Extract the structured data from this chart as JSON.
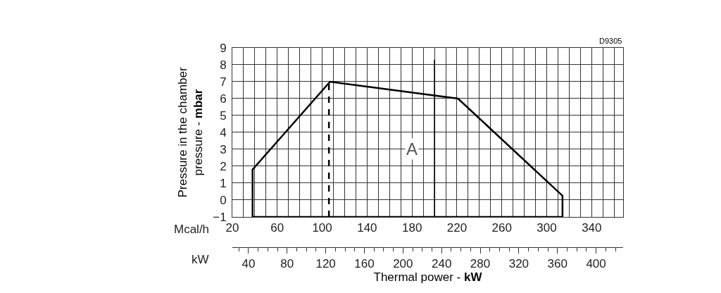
{
  "chart_data": {
    "type": "line",
    "xlabel": "Mcal/h",
    "x2label": "Thermal power - kW",
    "ylabel": "Pressure in the chamber\npressure - mbar",
    "annotations": [
      "D9305",
      "kW",
      {
        "text": "A",
        "x": 180,
        "y": 3
      }
    ],
    "series": [
      {
        "x": [
          38,
          38,
          107,
          221,
          314,
          314
        ],
        "values": [
          -1,
          1.8,
          7,
          6,
          0.25,
          -1
        ],
        "color": "#000000",
        "line_style": "solid"
      },
      {
        "x": [
          38,
          314
        ],
        "values": [
          -1,
          -1
        ],
        "color": "#000000",
        "line_style": "solid"
      },
      {
        "x": [
          106,
          106
        ],
        "values": [
          -1,
          7
        ],
        "color": "#000000",
        "line_style": "dashed"
      }
    ],
    "ref_lines": [
      {
        "axis": "x",
        "value": 200,
        "color": "#000000"
      }
    ],
    "xlim": [
      20,
      368
    ],
    "xticks": [
      20,
      {
        "value": 30,
        "label": null
      },
      {
        "value": 40,
        "label": null
      },
      {
        "value": 50,
        "label": null
      },
      60,
      {
        "value": 70,
        "label": null
      },
      {
        "value": 80,
        "label": null
      },
      {
        "value": 90,
        "label": null
      },
      100,
      {
        "value": 110,
        "label": null
      },
      {
        "value": 120,
        "label": null
      },
      {
        "value": 130,
        "label": null
      },
      140,
      {
        "value": 150,
        "label": null
      },
      {
        "value": 160,
        "label": null
      },
      {
        "value": 170,
        "label": null
      },
      180,
      {
        "value": 190,
        "label": null
      },
      {
        "value": 200,
        "label": null
      },
      {
        "value": 210,
        "label": null
      },
      220,
      {
        "value": 230,
        "label": null
      },
      {
        "value": 240,
        "label": null
      },
      {
        "value": 250,
        "label": null
      },
      260,
      {
        "value": 270,
        "label": null
      },
      {
        "value": 280,
        "label": null
      },
      {
        "value": 290,
        "label": null
      },
      300,
      {
        "value": 310,
        "label": null
      },
      {
        "value": 320,
        "label": null
      },
      {
        "value": 330,
        "label": null
      },
      340,
      {
        "value": 350,
        "label": null
      },
      {
        "value": 360,
        "label": null
      }
    ],
    "x2lim": [
      23.3,
      428
    ],
    "x2ticks": [
      40,
      80,
      120,
      160,
      200,
      240,
      280,
      320,
      360,
      400
    ],
    "ylim": [
      -1,
      9
    ],
    "yticks": [
      -1,
      0,
      1,
      2,
      3,
      4,
      5,
      6,
      7,
      8,
      9
    ],
    "grid": true,
    "marker": "none"
  }
}
